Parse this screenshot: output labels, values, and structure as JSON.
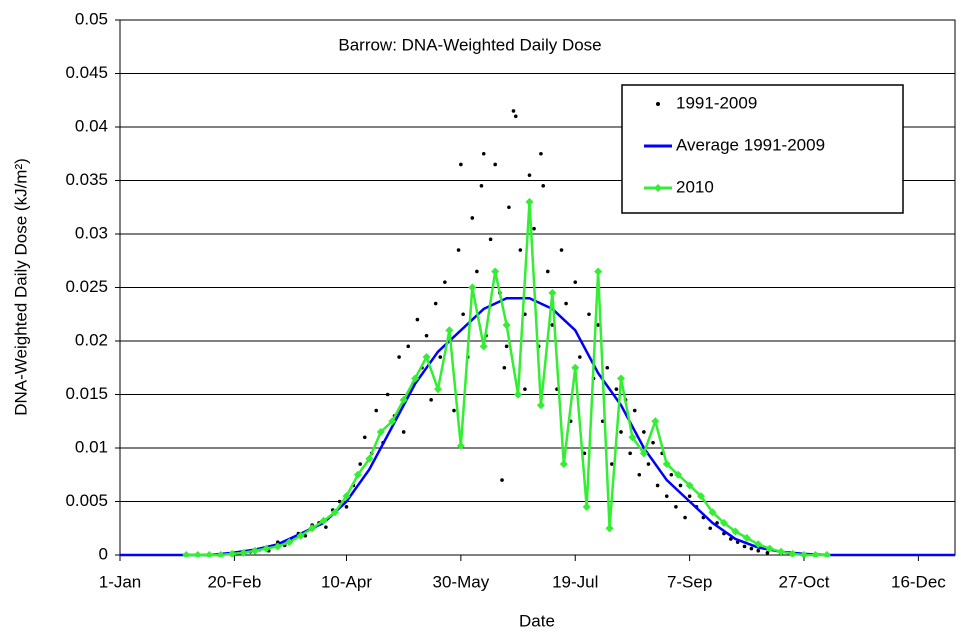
{
  "chart_data": {
    "type": "scatter",
    "title": "Barrow: DNA-Weighted Daily Dose",
    "x_label": "Date",
    "y_label": "DNA-Weighted Daily Dose (kJ/m²)",
    "xlim": [
      1,
      366
    ],
    "ylim": [
      0,
      0.05
    ],
    "xticks": [
      {
        "value": 1,
        "label": "1-Jan"
      },
      {
        "value": 51,
        "label": "20-Feb"
      },
      {
        "value": 100,
        "label": "10-Apr"
      },
      {
        "value": 150,
        "label": "30-May"
      },
      {
        "value": 200,
        "label": "19-Jul"
      },
      {
        "value": 250,
        "label": "7-Sep"
      },
      {
        "value": 300,
        "label": "27-Oct"
      },
      {
        "value": 350,
        "label": "16-Dec"
      }
    ],
    "yticks": [
      0,
      0.005,
      0.01,
      0.015,
      0.02,
      0.025,
      0.03,
      0.035,
      0.04,
      0.045,
      0.05
    ],
    "grid": true,
    "legend": "upper right",
    "series": [
      {
        "name": "1991-2009",
        "type": "scatter",
        "color": "#000000",
        "x": [
          52,
          58,
          62,
          66,
          70,
          73,
          76,
          79,
          82,
          85,
          88,
          91,
          94,
          97,
          100,
          103,
          106,
          108,
          111,
          113,
          116,
          118,
          121,
          123,
          125,
          127,
          129,
          131,
          133,
          135,
          137,
          139,
          141,
          143,
          145,
          147,
          149,
          151,
          153,
          155,
          157,
          159,
          161,
          163,
          165,
          167,
          169,
          171,
          173,
          174,
          176,
          178,
          180,
          182,
          184,
          186,
          188,
          190,
          192,
          194,
          196,
          198,
          200,
          202,
          204,
          206,
          208,
          210,
          212,
          214,
          216,
          218,
          220,
          222,
          224,
          226,
          228,
          230,
          232,
          234,
          236,
          238,
          240,
          242,
          244,
          246,
          248,
          250,
          253,
          256,
          259,
          262,
          265,
          268,
          271,
          274,
          277,
          280,
          284,
          290,
          168,
          150,
          160,
          185,
          170,
          178
        ],
        "values": [
          0.0001,
          0.0003,
          0.0005,
          0.0004,
          0.0012,
          0.0009,
          0.0015,
          0.002,
          0.0018,
          0.0028,
          0.003,
          0.0026,
          0.0042,
          0.005,
          0.0045,
          0.0065,
          0.0085,
          0.011,
          0.0095,
          0.0135,
          0.0105,
          0.015,
          0.013,
          0.0185,
          0.0115,
          0.0195,
          0.016,
          0.022,
          0.0175,
          0.0205,
          0.0145,
          0.0235,
          0.0185,
          0.0255,
          0.021,
          0.0135,
          0.0285,
          0.0225,
          0.0185,
          0.0315,
          0.0265,
          0.0345,
          0.0205,
          0.0295,
          0.0365,
          0.0245,
          0.0175,
          0.0325,
          0.0415,
          0.041,
          0.0285,
          0.0225,
          0.0355,
          0.0305,
          0.0195,
          0.0345,
          0.0265,
          0.0215,
          0.0155,
          0.0285,
          0.0235,
          0.0125,
          0.0255,
          0.0185,
          0.0095,
          0.0225,
          0.0165,
          0.0215,
          0.0125,
          0.0175,
          0.0085,
          0.0155,
          0.0115,
          0.0145,
          0.0095,
          0.0135,
          0.0075,
          0.0115,
          0.0085,
          0.0105,
          0.0065,
          0.0095,
          0.0055,
          0.0075,
          0.0045,
          0.0065,
          0.0035,
          0.0055,
          0.0045,
          0.0035,
          0.0025,
          0.003,
          0.002,
          0.0015,
          0.0012,
          0.0008,
          0.0006,
          0.0004,
          0.0002,
          0.0001,
          0.007,
          0.0365,
          0.0375,
          0.0375,
          0.0195,
          0.0155
        ]
      },
      {
        "name": "Average 1991-2009",
        "type": "line",
        "color": "#0000ff",
        "x": [
          1,
          20,
          40,
          50,
          60,
          70,
          80,
          90,
          100,
          110,
          120,
          130,
          140,
          150,
          160,
          170,
          180,
          190,
          200,
          210,
          220,
          230,
          240,
          250,
          260,
          270,
          280,
          290,
          300,
          310,
          330,
          366
        ],
        "values": [
          0,
          0,
          0,
          0.0002,
          0.0005,
          0.001,
          0.002,
          0.003,
          0.005,
          0.008,
          0.012,
          0.016,
          0.019,
          0.021,
          0.023,
          0.024,
          0.024,
          0.023,
          0.021,
          0.017,
          0.014,
          0.01,
          0.007,
          0.005,
          0.003,
          0.0015,
          0.0007,
          0.0003,
          0.0001,
          0,
          0,
          0
        ]
      },
      {
        "name": "2010",
        "type": "line",
        "marker": "diamond",
        "color": "#33ee33",
        "x": [
          30,
          35,
          40,
          45,
          50,
          55,
          60,
          65,
          70,
          75,
          80,
          85,
          90,
          95,
          100,
          105,
          110,
          115,
          120,
          125,
          130,
          135,
          140,
          145,
          150,
          155,
          160,
          165,
          170,
          175,
          180,
          185,
          190,
          195,
          200,
          205,
          210,
          215,
          220,
          225,
          230,
          235,
          240,
          245,
          250,
          255,
          260,
          265,
          270,
          275,
          280,
          285,
          290,
          295,
          300,
          305,
          310
        ],
        "values": [
          0,
          0,
          0,
          0,
          0.0001,
          0.0002,
          0.0004,
          0.0006,
          0.0008,
          0.0012,
          0.0018,
          0.0025,
          0.0032,
          0.004,
          0.0055,
          0.0075,
          0.009,
          0.0115,
          0.0125,
          0.0145,
          0.0165,
          0.0185,
          0.0155,
          0.021,
          0.0102,
          0.025,
          0.0195,
          0.0265,
          0.0215,
          0.015,
          0.033,
          0.014,
          0.0245,
          0.0085,
          0.0175,
          0.0045,
          0.0265,
          0.0025,
          0.0165,
          0.011,
          0.0095,
          0.0125,
          0.0085,
          0.0075,
          0.0065,
          0.0055,
          0.004,
          0.003,
          0.0022,
          0.0016,
          0.001,
          0.0006,
          0.0003,
          0.0001,
          0,
          0,
          0
        ]
      }
    ]
  }
}
